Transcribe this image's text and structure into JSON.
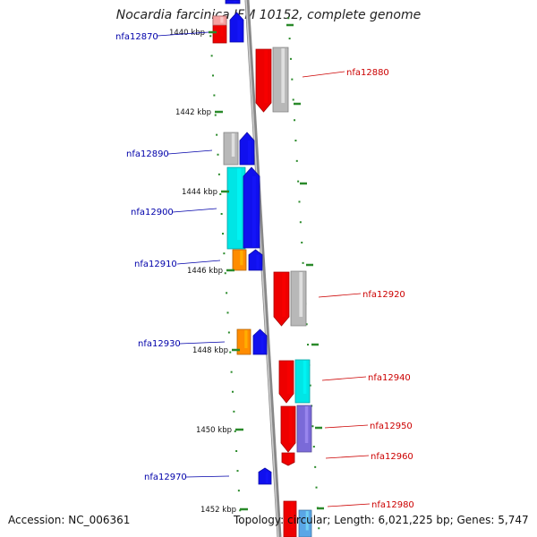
{
  "title": "Nocardia farcinica IFM 10152, complete genome",
  "footer": {
    "accession": "Accession: NC_006361",
    "topology": "Topology: circular; Length: 6,021,225 bp; Genes: 5,747"
  },
  "colors": {
    "left_label": "#0000aa",
    "right_label": "#cc0000",
    "tick": "#2a8a2a",
    "axis": "#888888",
    "red": "#ee0000",
    "blue": "#1010ee",
    "gray": "#b8b8b8",
    "cyan": "#00e5e5",
    "orange": "#ff8c00",
    "violet": "#7a6ad8",
    "pink": "#f6a0a0"
  },
  "kbp_ticks": [
    "1440 kbp",
    "1442 kbp",
    "1444 kbp",
    "1446 kbp",
    "1448 kbp",
    "1450 kbp",
    "1452 kbp"
  ],
  "left_labels": [
    "nfa12870",
    "nfa12890",
    "nfa12900",
    "nfa12910",
    "nfa12930",
    "nfa12970"
  ],
  "right_labels": [
    "nfa12880",
    "nfa12920",
    "nfa12940",
    "nfa12950",
    "nfa12960",
    "nfa12980"
  ]
}
